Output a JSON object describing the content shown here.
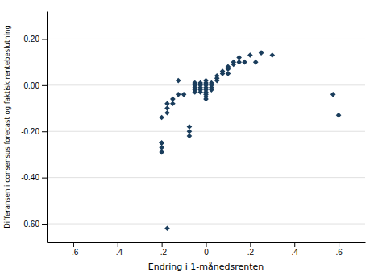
{
  "chart_data": {
    "type": "scatter",
    "xlabel": "Endring i 1-månedsrenten",
    "ylabel": "Differansen i consensus forecast og faktisk rentebeslutning",
    "color": "#1a3d5c",
    "marker": "diamond",
    "grid": "y",
    "xlim": [
      -0.72,
      0.72
    ],
    "ylim": [
      -0.68,
      0.32
    ],
    "xticks": [
      {
        "value": -0.6,
        "label": "-.6"
      },
      {
        "value": -0.4,
        "label": "-.4"
      },
      {
        "value": -0.2,
        "label": "-.2"
      },
      0,
      {
        "value": 0.2,
        "label": ".2"
      },
      {
        "value": 0.4,
        "label": ".4"
      },
      {
        "value": 0.6,
        "label": ".6"
      }
    ],
    "yticks": [
      {
        "value": -0.6,
        "label": "-0.60"
      },
      {
        "value": -0.4,
        "label": "-0.40"
      },
      {
        "value": -0.2,
        "label": "-0.20"
      },
      {
        "value": 0.0,
        "label": "0.00"
      },
      {
        "value": 0.2,
        "label": "0.20"
      }
    ],
    "x": [
      -0.2,
      -0.2,
      -0.2,
      -0.2,
      -0.2,
      -0.175,
      -0.175,
      -0.175,
      -0.15,
      -0.15,
      -0.125,
      -0.125,
      -0.1,
      -0.075,
      -0.075,
      -0.075,
      -0.05,
      -0.05,
      -0.05,
      -0.05,
      -0.05,
      -0.025,
      -0.025,
      -0.025,
      -0.025,
      -0.025,
      0.0,
      0.0,
      0.0,
      0.0,
      0.0,
      0.0,
      0.0,
      0.0,
      0.0,
      0.025,
      0.025,
      0.025,
      0.025,
      0.05,
      0.05,
      0.05,
      0.075,
      0.075,
      0.1,
      0.1,
      0.1,
      0.125,
      0.125,
      0.15,
      0.15,
      0.175,
      0.2,
      0.225,
      0.25,
      0.3,
      0.575,
      0.6,
      -0.175
    ],
    "y": [
      -0.25,
      -0.25,
      -0.27,
      -0.29,
      -0.14,
      -0.12,
      -0.1,
      -0.08,
      -0.08,
      -0.06,
      0.02,
      -0.04,
      -0.04,
      -0.18,
      -0.2,
      -0.22,
      -0.02,
      -0.01,
      0.0,
      0.01,
      -0.03,
      -0.03,
      -0.02,
      -0.01,
      0.0,
      0.01,
      -0.04,
      -0.03,
      -0.02,
      -0.01,
      0.0,
      0.01,
      0.02,
      -0.05,
      -0.06,
      -0.02,
      -0.01,
      0.0,
      0.01,
      0.02,
      0.03,
      0.04,
      0.05,
      0.06,
      0.05,
      0.07,
      0.08,
      0.09,
      0.1,
      0.1,
      0.12,
      0.1,
      0.13,
      0.1,
      0.14,
      0.13,
      -0.04,
      -0.13,
      -0.62
    ]
  }
}
